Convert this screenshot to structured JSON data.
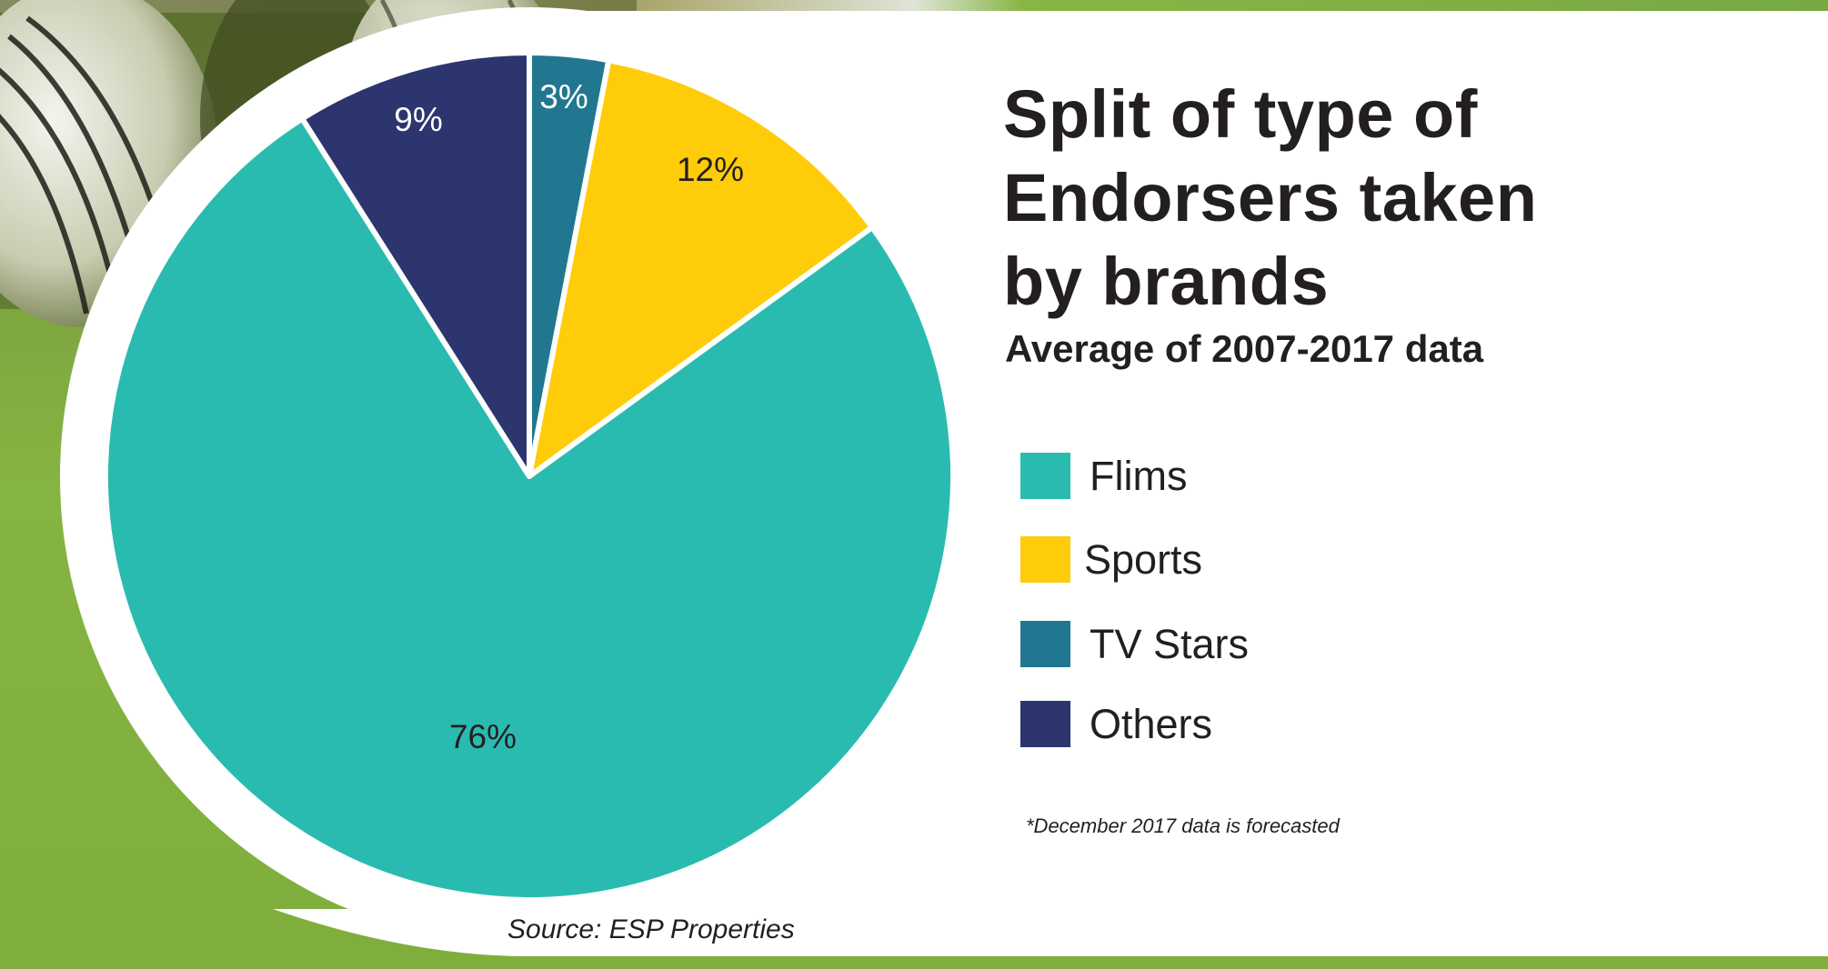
{
  "title_lines": [
    "Split of type of",
    "Endorsers taken",
    "by brands"
  ],
  "subtitle": "Average of 2007-2017 data",
  "footnote": "*December 2017 data is forecasted",
  "source": "Source: ESP Properties",
  "legend": [
    {
      "label": "Flims",
      "color": "#2abbb0"
    },
    {
      "label": "Sports",
      "color": "#ffcc0a"
    },
    {
      "label": "TV Stars",
      "color": "#21778f"
    },
    {
      "label": "Others",
      "color": "#2c356d"
    }
  ],
  "colors": {
    "background_grass": "#7fae3c",
    "panel": "#ffffff",
    "text_dark": "#231f20",
    "label_light": "#ffffff"
  },
  "chart_data": {
    "type": "pie",
    "title": "Split of type of Endorsers taken by brands",
    "subtitle": "Average of 2007-2017 data",
    "categories": [
      "TV Stars",
      "Sports",
      "Flims",
      "Others"
    ],
    "values": [
      3,
      12,
      76,
      9
    ],
    "labels": [
      "3%",
      "12%",
      "76%",
      "9%"
    ],
    "colors": [
      "#21778f",
      "#ffcc0a",
      "#2abbb0",
      "#2c356d"
    ],
    "label_colors": [
      "#ffffff",
      "#231f20",
      "#231f20",
      "#ffffff"
    ],
    "start_angle_deg": 0,
    "direction": "clockwise",
    "legend_order": [
      "Flims",
      "Sports",
      "TV Stars",
      "Others"
    ],
    "legend_position": "right",
    "annotations": [
      "*December 2017 data is forecasted",
      "Source: ESP Properties"
    ]
  }
}
